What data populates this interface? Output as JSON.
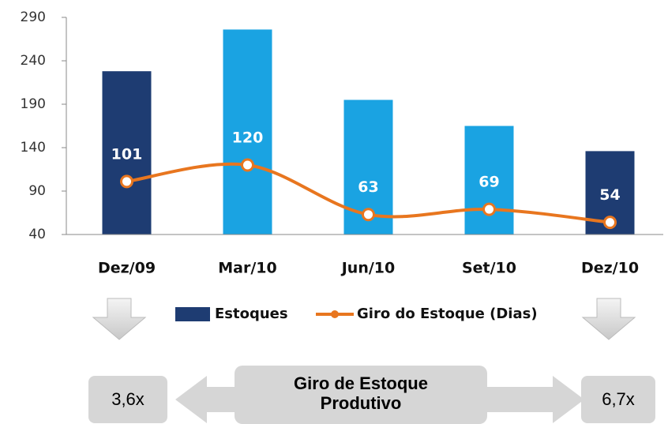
{
  "chart_data": {
    "type": "bar_line",
    "categories": [
      "Dez/09",
      "Mar/10",
      "Jun/10",
      "Set/10",
      "Dez/10"
    ],
    "series": [
      {
        "name": "Estoques",
        "color": "#1e3c72",
        "colors": [
          "#1e3c72",
          "#1aa3e2",
          "#1aa3e2",
          "#1aa3e2",
          "#1e3c72"
        ],
        "values": [
          228,
          276,
          195,
          165,
          136
        ]
      },
      {
        "name": "Giro do Estoque (Dias)",
        "color": "#e8761f",
        "values": [
          101,
          120,
          63,
          69,
          54
        ]
      }
    ],
    "ylim": [
      40,
      290
    ],
    "yticks": [
      40,
      90,
      140,
      190,
      240,
      290
    ],
    "legend": "bottom",
    "annotations": {
      "left": "3,6x",
      "center": [
        "Giro de Estoque",
        "Produtivo"
      ],
      "right": "6,7x"
    }
  }
}
